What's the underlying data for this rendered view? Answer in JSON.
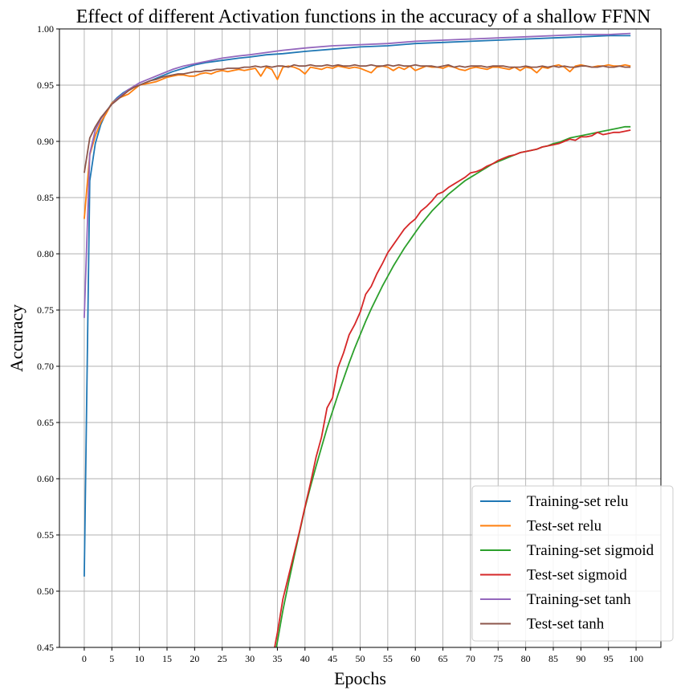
{
  "chart_data": {
    "type": "line",
    "title": "Effect of different Activation functions in the accuracy of a shallow FFNN",
    "xlabel": "Epochs",
    "ylabel": "Accuracy",
    "xlim": [
      -4.5,
      104.5
    ],
    "ylim": [
      0.45,
      1.0
    ],
    "xticks": [
      0,
      5,
      10,
      15,
      20,
      25,
      30,
      35,
      40,
      45,
      50,
      55,
      60,
      65,
      70,
      75,
      80,
      85,
      90,
      95,
      100
    ],
    "yticks": [
      0.45,
      0.5,
      0.55,
      0.6,
      0.65,
      0.7,
      0.75,
      0.8,
      0.85,
      0.9,
      0.95,
      1.0
    ],
    "ytick_labels": [
      "0.45",
      "0.50",
      "0.55",
      "0.60",
      "0.65",
      "0.70",
      "0.75",
      "0.80",
      "0.85",
      "0.90",
      "0.95",
      "1.00"
    ],
    "grid": true,
    "legend_position": "bottom-right",
    "series": [
      {
        "name": "Training-set relu",
        "color": "#1f77b4",
        "x": [
          0,
          1,
          2,
          3,
          4,
          5,
          6,
          7,
          8,
          9,
          10,
          12,
          14,
          16,
          18,
          20,
          22,
          25,
          28,
          30,
          33,
          36,
          40,
          45,
          50,
          55,
          60,
          65,
          70,
          75,
          80,
          85,
          90,
          95,
          99
        ],
        "y": [
          0.513,
          0.865,
          0.898,
          0.915,
          0.926,
          0.934,
          0.939,
          0.943,
          0.946,
          0.948,
          0.95,
          0.954,
          0.958,
          0.962,
          0.965,
          0.968,
          0.97,
          0.972,
          0.974,
          0.975,
          0.977,
          0.978,
          0.98,
          0.982,
          0.984,
          0.985,
          0.987,
          0.988,
          0.989,
          0.99,
          0.991,
          0.992,
          0.993,
          0.994,
          0.994
        ]
      },
      {
        "name": "Test-set relu",
        "color": "#ff7f0e",
        "x": [
          0,
          1,
          2,
          3,
          4,
          5,
          6,
          7,
          8,
          9,
          10,
          11,
          12,
          13,
          14,
          15,
          16,
          17,
          18,
          19,
          20,
          21,
          22,
          23,
          24,
          25,
          26,
          27,
          28,
          29,
          30,
          31,
          32,
          33,
          34,
          35,
          36,
          37,
          38,
          39,
          40,
          41,
          42,
          43,
          44,
          45,
          46,
          47,
          48,
          49,
          50,
          51,
          52,
          53,
          54,
          55,
          56,
          57,
          58,
          59,
          60,
          61,
          62,
          63,
          64,
          65,
          66,
          67,
          68,
          69,
          70,
          71,
          72,
          73,
          74,
          75,
          76,
          77,
          78,
          79,
          80,
          81,
          82,
          83,
          84,
          85,
          86,
          87,
          88,
          89,
          90,
          91,
          92,
          93,
          94,
          95,
          96,
          97,
          98,
          99
        ],
        "y": [
          0.831,
          0.888,
          0.905,
          0.917,
          0.925,
          0.934,
          0.938,
          0.94,
          0.942,
          0.946,
          0.95,
          0.951,
          0.952,
          0.953,
          0.955,
          0.957,
          0.958,
          0.959,
          0.959,
          0.958,
          0.958,
          0.96,
          0.961,
          0.96,
          0.962,
          0.963,
          0.962,
          0.963,
          0.964,
          0.963,
          0.964,
          0.965,
          0.958,
          0.966,
          0.964,
          0.955,
          0.966,
          0.967,
          0.966,
          0.964,
          0.96,
          0.966,
          0.965,
          0.964,
          0.966,
          0.965,
          0.967,
          0.966,
          0.965,
          0.966,
          0.965,
          0.963,
          0.961,
          0.966,
          0.967,
          0.966,
          0.963,
          0.966,
          0.964,
          0.967,
          0.963,
          0.965,
          0.967,
          0.966,
          0.966,
          0.965,
          0.967,
          0.966,
          0.964,
          0.963,
          0.965,
          0.966,
          0.965,
          0.964,
          0.966,
          0.966,
          0.965,
          0.964,
          0.966,
          0.963,
          0.966,
          0.965,
          0.961,
          0.966,
          0.965,
          0.967,
          0.968,
          0.966,
          0.962,
          0.967,
          0.968,
          0.967,
          0.966,
          0.967,
          0.967,
          0.968,
          0.967,
          0.967,
          0.968,
          0.967
        ]
      },
      {
        "name": "Training-set sigmoid",
        "color": "#2ca02c",
        "x": [
          34.8,
          35,
          36,
          37,
          38,
          39,
          40,
          41,
          42,
          43,
          44,
          45,
          46,
          47,
          48,
          49,
          50,
          51,
          52,
          53,
          54,
          55,
          56,
          57,
          58,
          59,
          60,
          61,
          62,
          63,
          64,
          65,
          66,
          67,
          68,
          69,
          70,
          71,
          72,
          73,
          74,
          75,
          76,
          77,
          78,
          79,
          80,
          81,
          82,
          83,
          84,
          85,
          86,
          87,
          88,
          89,
          90,
          91,
          92,
          93,
          94,
          95,
          96,
          97,
          98,
          99
        ],
        "y": [
          0.45,
          0.455,
          0.483,
          0.507,
          0.53,
          0.552,
          0.574,
          0.593,
          0.611,
          0.628,
          0.645,
          0.66,
          0.675,
          0.689,
          0.703,
          0.716,
          0.728,
          0.74,
          0.751,
          0.761,
          0.771,
          0.78,
          0.789,
          0.797,
          0.805,
          0.812,
          0.819,
          0.826,
          0.832,
          0.838,
          0.843,
          0.848,
          0.853,
          0.857,
          0.861,
          0.865,
          0.868,
          0.871,
          0.874,
          0.877,
          0.88,
          0.882,
          0.884,
          0.886,
          0.888,
          0.89,
          0.891,
          0.892,
          0.893,
          0.895,
          0.896,
          0.898,
          0.899,
          0.901,
          0.903,
          0.904,
          0.905,
          0.906,
          0.907,
          0.908,
          0.909,
          0.91,
          0.911,
          0.912,
          0.913,
          0.913
        ]
      },
      {
        "name": "Test-set sigmoid",
        "color": "#d62728",
        "x": [
          34.5,
          35,
          36,
          37,
          38,
          39,
          40,
          41,
          42,
          43,
          44,
          45,
          46,
          47,
          48,
          49,
          50,
          51,
          52,
          53,
          54,
          55,
          56,
          57,
          58,
          59,
          60,
          61,
          62,
          63,
          64,
          65,
          66,
          67,
          68,
          69,
          70,
          71,
          72,
          73,
          74,
          75,
          76,
          77,
          78,
          79,
          80,
          81,
          82,
          83,
          84,
          85,
          86,
          87,
          88,
          89,
          90,
          91,
          92,
          93,
          94,
          95,
          96,
          97,
          98,
          99
        ],
        "y": [
          0.45,
          0.463,
          0.493,
          0.513,
          0.533,
          0.553,
          0.575,
          0.596,
          0.619,
          0.637,
          0.663,
          0.672,
          0.699,
          0.712,
          0.728,
          0.737,
          0.748,
          0.764,
          0.771,
          0.782,
          0.791,
          0.801,
          0.808,
          0.815,
          0.822,
          0.827,
          0.831,
          0.838,
          0.842,
          0.847,
          0.853,
          0.855,
          0.859,
          0.862,
          0.865,
          0.868,
          0.872,
          0.873,
          0.875,
          0.878,
          0.88,
          0.883,
          0.885,
          0.887,
          0.888,
          0.89,
          0.891,
          0.892,
          0.893,
          0.895,
          0.896,
          0.897,
          0.898,
          0.9,
          0.902,
          0.901,
          0.904,
          0.904,
          0.905,
          0.908,
          0.906,
          0.907,
          0.908,
          0.908,
          0.909,
          0.91
        ]
      },
      {
        "name": "Training-set tanh",
        "color": "#9467bd",
        "x": [
          0,
          1,
          2,
          3,
          4,
          5,
          6,
          7,
          8,
          9,
          10,
          12,
          14,
          16,
          18,
          20,
          22,
          25,
          28,
          30,
          33,
          36,
          40,
          45,
          50,
          55,
          60,
          65,
          70,
          75,
          80,
          85,
          90,
          95,
          99
        ],
        "y": [
          0.743,
          0.889,
          0.91,
          0.92,
          0.927,
          0.933,
          0.938,
          0.942,
          0.946,
          0.949,
          0.952,
          0.956,
          0.96,
          0.964,
          0.967,
          0.969,
          0.971,
          0.974,
          0.976,
          0.977,
          0.979,
          0.981,
          0.983,
          0.985,
          0.986,
          0.987,
          0.989,
          0.99,
          0.991,
          0.992,
          0.993,
          0.994,
          0.995,
          0.995,
          0.996
        ]
      },
      {
        "name": "Test-set tanh",
        "color": "#8c564b",
        "x": [
          0,
          1,
          2,
          3,
          4,
          5,
          6,
          7,
          8,
          9,
          10,
          11,
          12,
          13,
          14,
          15,
          16,
          17,
          18,
          19,
          20,
          21,
          22,
          23,
          24,
          25,
          26,
          27,
          28,
          29,
          30,
          31,
          32,
          33,
          34,
          35,
          36,
          37,
          38,
          39,
          40,
          41,
          42,
          43,
          44,
          45,
          46,
          47,
          48,
          49,
          50,
          51,
          52,
          53,
          54,
          55,
          56,
          57,
          58,
          59,
          60,
          61,
          62,
          63,
          64,
          65,
          66,
          67,
          68,
          69,
          70,
          71,
          72,
          73,
          74,
          75,
          76,
          77,
          78,
          79,
          80,
          81,
          82,
          83,
          84,
          85,
          86,
          87,
          88,
          89,
          90,
          91,
          92,
          93,
          94,
          95,
          96,
          97,
          98,
          99
        ],
        "y": [
          0.872,
          0.903,
          0.913,
          0.921,
          0.927,
          0.933,
          0.937,
          0.941,
          0.945,
          0.948,
          0.95,
          0.952,
          0.954,
          0.955,
          0.957,
          0.958,
          0.959,
          0.96,
          0.96,
          0.961,
          0.962,
          0.962,
          0.963,
          0.963,
          0.964,
          0.964,
          0.965,
          0.965,
          0.965,
          0.966,
          0.966,
          0.967,
          0.966,
          0.967,
          0.966,
          0.967,
          0.967,
          0.966,
          0.968,
          0.967,
          0.967,
          0.968,
          0.967,
          0.967,
          0.968,
          0.967,
          0.968,
          0.967,
          0.967,
          0.968,
          0.967,
          0.967,
          0.968,
          0.967,
          0.967,
          0.968,
          0.967,
          0.968,
          0.967,
          0.967,
          0.968,
          0.967,
          0.967,
          0.967,
          0.966,
          0.967,
          0.968,
          0.966,
          0.967,
          0.966,
          0.967,
          0.967,
          0.967,
          0.966,
          0.967,
          0.967,
          0.967,
          0.966,
          0.966,
          0.966,
          0.967,
          0.966,
          0.966,
          0.967,
          0.966,
          0.967,
          0.966,
          0.967,
          0.966,
          0.966,
          0.967,
          0.967,
          0.966,
          0.966,
          0.967,
          0.966,
          0.966,
          0.967,
          0.966,
          0.966
        ]
      }
    ]
  }
}
